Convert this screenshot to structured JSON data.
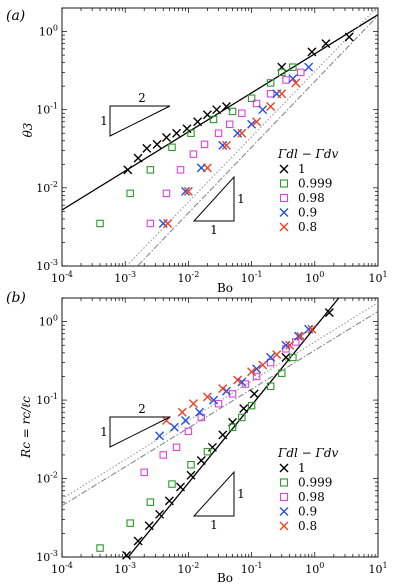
{
  "chart_data": [
    {
      "type": "scatter",
      "panel_label": "(a)",
      "xlabel": "Bo",
      "ylabel": "θ3",
      "xscale": "log",
      "yscale": "log",
      "xlim": [
        0.0001,
        10
      ],
      "ylim": [
        0.001,
        2
      ],
      "x_tick_labels": [
        "10-4",
        "10-3",
        "10-2",
        "10-1",
        "100",
        "101"
      ],
      "y_tick_labels": [
        "10-3",
        "10-2",
        "10-1",
        "100"
      ],
      "legend_title": "Γdl − Γdv",
      "legend_placement": "right",
      "slope_triangles": [
        {
          "slope_label": "2",
          "run_label": "1",
          "position": "upper-left"
        },
        {
          "slope_label": "1",
          "run_label": "1",
          "position": "lower-middle"
        }
      ],
      "series": [
        {
          "name": "1",
          "marker": "x",
          "color": "#000000",
          "points": [
            [
              0.0011,
              0.017
            ],
            [
              0.0016,
              0.024
            ],
            [
              0.0022,
              0.032
            ],
            [
              0.0032,
              0.036
            ],
            [
              0.0045,
              0.044
            ],
            [
              0.0065,
              0.05
            ],
            [
              0.0095,
              0.057
            ],
            [
              0.014,
              0.07
            ],
            [
              0.02,
              0.086
            ],
            [
              0.028,
              0.1
            ],
            [
              0.04,
              0.11
            ],
            [
              0.3,
              0.35
            ],
            [
              0.9,
              0.55
            ],
            [
              1.5,
              0.7
            ],
            [
              3.5,
              0.85
            ]
          ]
        },
        {
          "name": "0.999",
          "marker": "square",
          "color": "#2a9a2a",
          "points": [
            [
              0.0004,
              0.0035
            ],
            [
              0.0012,
              0.0085
            ],
            [
              0.0025,
              0.017
            ],
            [
              0.0055,
              0.033
            ],
            [
              0.011,
              0.05
            ],
            [
              0.025,
              0.075
            ],
            [
              0.05,
              0.095
            ],
            [
              0.1,
              0.14
            ],
            [
              0.2,
              0.22
            ],
            [
              0.3,
              0.3
            ],
            [
              0.45,
              0.35
            ]
          ]
        },
        {
          "name": "0.98",
          "marker": "square",
          "color": "#e040e0",
          "points": [
            [
              0.0025,
              0.0035
            ],
            [
              0.0045,
              0.0085
            ],
            [
              0.0075,
              0.017
            ],
            [
              0.012,
              0.027
            ],
            [
              0.018,
              0.036
            ],
            [
              0.03,
              0.05
            ],
            [
              0.045,
              0.065
            ],
            [
              0.07,
              0.09
            ],
            [
              0.12,
              0.12
            ],
            [
              0.2,
              0.16
            ],
            [
              0.35,
              0.24
            ],
            [
              0.6,
              0.3
            ]
          ]
        },
        {
          "name": "0.9",
          "marker": "x",
          "color": "#2050e0",
          "points": [
            [
              0.004,
              0.0035
            ],
            [
              0.009,
              0.009
            ],
            [
              0.016,
              0.018
            ],
            [
              0.035,
              0.035
            ],
            [
              0.06,
              0.05
            ],
            [
              0.1,
              0.065
            ],
            [
              0.15,
              0.1
            ],
            [
              0.25,
              0.16
            ],
            [
              0.45,
              0.25
            ],
            [
              0.8,
              0.35
            ]
          ]
        },
        {
          "name": "0.8",
          "marker": "x",
          "color": "#f04020",
          "points": [
            [
              0.0047,
              0.0035
            ],
            [
              0.01,
              0.009
            ],
            [
              0.02,
              0.018
            ],
            [
              0.04,
              0.035
            ],
            [
              0.07,
              0.05
            ],
            [
              0.12,
              0.07
            ],
            [
              0.2,
              0.11
            ],
            [
              0.3,
              0.16
            ],
            [
              0.5,
              0.22
            ]
          ]
        }
      ]
    },
    {
      "type": "scatter",
      "panel_label": "(b)",
      "xlabel": "Bo",
      "ylabel": "Rc = rc/ℓc",
      "xscale": "log",
      "yscale": "log",
      "xlim": [
        0.0001,
        10
      ],
      "ylim": [
        0.001,
        2
      ],
      "x_tick_labels": [
        "10-4",
        "10-3",
        "10-2",
        "10-1",
        "100",
        "101"
      ],
      "y_tick_labels": [
        "10-3",
        "10-2",
        "10-1",
        "100"
      ],
      "legend_title": "Γdl − Γdv",
      "legend_placement": "right",
      "slope_triangles": [
        {
          "slope_label": "2",
          "run_label": "1",
          "position": "upper-left"
        },
        {
          "slope_label": "1",
          "run_label": "1",
          "position": "lower-middle"
        }
      ],
      "series": [
        {
          "name": "1",
          "marker": "x",
          "color": "#000000",
          "points": [
            [
              0.00105,
              0.00105
            ],
            [
              0.0016,
              0.0016
            ],
            [
              0.0024,
              0.0025
            ],
            [
              0.0035,
              0.0035
            ],
            [
              0.005,
              0.0052
            ],
            [
              0.0075,
              0.0078
            ],
            [
              0.011,
              0.011
            ],
            [
              0.016,
              0.017
            ],
            [
              0.024,
              0.025
            ],
            [
              0.035,
              0.036
            ],
            [
              0.05,
              0.052
            ],
            [
              0.075,
              0.078
            ],
            [
              0.11,
              0.12
            ],
            [
              0.35,
              0.35
            ],
            [
              1.7,
              1.3
            ]
          ]
        },
        {
          "name": "0.999",
          "marker": "square",
          "color": "#2a9a2a",
          "points": [
            [
              0.0004,
              0.0013
            ],
            [
              0.0012,
              0.0027
            ],
            [
              0.0025,
              0.005
            ],
            [
              0.0055,
              0.0085
            ],
            [
              0.011,
              0.015
            ],
            [
              0.02,
              0.022
            ],
            [
              0.05,
              0.045
            ],
            [
              0.07,
              0.06
            ],
            [
              0.1,
              0.085
            ],
            [
              0.2,
              0.15
            ],
            [
              0.3,
              0.22
            ],
            [
              0.45,
              0.35
            ]
          ]
        },
        {
          "name": "0.98",
          "marker": "square",
          "color": "#e040e0",
          "points": [
            [
              0.002,
              0.012
            ],
            [
              0.004,
              0.02
            ],
            [
              0.0065,
              0.025
            ],
            [
              0.01,
              0.04
            ],
            [
              0.016,
              0.06
            ],
            [
              0.03,
              0.09
            ],
            [
              0.05,
              0.12
            ],
            [
              0.08,
              0.16
            ],
            [
              0.12,
              0.2
            ],
            [
              0.2,
              0.3
            ],
            [
              0.35,
              0.45
            ],
            [
              0.5,
              0.55
            ]
          ]
        },
        {
          "name": "0.9",
          "marker": "x",
          "color": "#2050e0",
          "points": [
            [
              0.0035,
              0.035
            ],
            [
              0.006,
              0.045
            ],
            [
              0.009,
              0.055
            ],
            [
              0.015,
              0.07
            ],
            [
              0.025,
              0.1
            ],
            [
              0.04,
              0.13
            ],
            [
              0.07,
              0.17
            ],
            [
              0.12,
              0.25
            ],
            [
              0.2,
              0.35
            ],
            [
              0.35,
              0.5
            ],
            [
              0.55,
              0.65
            ],
            [
              0.8,
              0.8
            ]
          ]
        },
        {
          "name": "0.8",
          "marker": "x",
          "color": "#f04020",
          "points": [
            [
              0.0045,
              0.055
            ],
            [
              0.008,
              0.07
            ],
            [
              0.012,
              0.09
            ],
            [
              0.02,
              0.11
            ],
            [
              0.035,
              0.14
            ],
            [
              0.06,
              0.18
            ],
            [
              0.1,
              0.23
            ],
            [
              0.15,
              0.28
            ],
            [
              0.25,
              0.38
            ],
            [
              0.4,
              0.5
            ],
            [
              0.6,
              0.65
            ],
            [
              0.9,
              0.8
            ]
          ]
        }
      ]
    }
  ]
}
